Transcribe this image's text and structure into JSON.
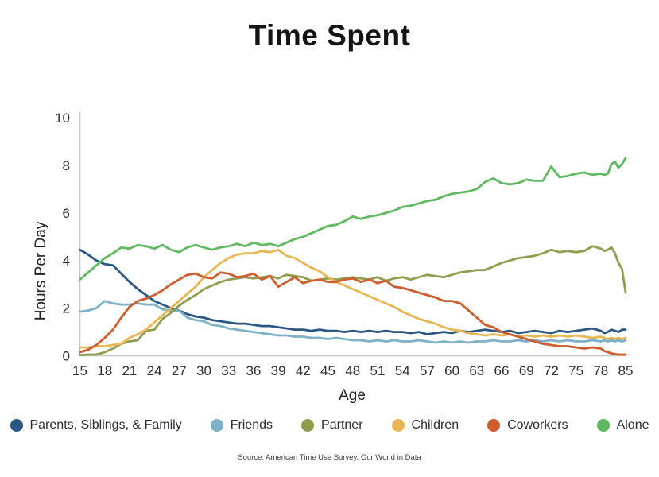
{
  "title": "Time Spent",
  "source": "Source: American Time Use Survey, Our World in Data",
  "chart_data": {
    "type": "line",
    "title": "Time Spent",
    "xlabel": "Age",
    "ylabel": "Hours Per Day",
    "x_range": [
      15,
      85
    ],
    "ylim": [
      0,
      10
    ],
    "grid": false,
    "legend_position": "bottom",
    "x_tick_labels": [
      "15",
      "18",
      "21",
      "24",
      "27",
      "30",
      "33",
      "36",
      "39",
      "42",
      "45",
      "48",
      "51",
      "54",
      "57",
      "60",
      "63",
      "66",
      "69",
      "72",
      "75",
      "78",
      "85"
    ],
    "y_ticks": [
      "0",
      "2",
      "4",
      "6",
      "8",
      "10"
    ],
    "ages": [
      15,
      16,
      17,
      18,
      19,
      20,
      21,
      22,
      23,
      24,
      25,
      26,
      27,
      28,
      29,
      30,
      31,
      32,
      33,
      34,
      35,
      36,
      37,
      38,
      39,
      40,
      41,
      42,
      43,
      44,
      45,
      46,
      47,
      48,
      49,
      50,
      51,
      52,
      53,
      54,
      55,
      56,
      57,
      58,
      59,
      60,
      61,
      62,
      63,
      64,
      65,
      66,
      67,
      68,
      69,
      70,
      71,
      72,
      73,
      74,
      75,
      76,
      77,
      78,
      79,
      80,
      81,
      82,
      83,
      84,
      85
    ],
    "series": [
      {
        "name": "Parents, Siblings, & Family",
        "color": "#2a5784",
        "values": [
          4.45,
          4.25,
          4.0,
          3.85,
          3.8,
          3.45,
          3.1,
          2.8,
          2.55,
          2.3,
          2.15,
          2.0,
          1.9,
          1.75,
          1.65,
          1.6,
          1.5,
          1.45,
          1.4,
          1.35,
          1.35,
          1.3,
          1.25,
          1.25,
          1.2,
          1.15,
          1.1,
          1.1,
          1.05,
          1.1,
          1.05,
          1.05,
          1.0,
          1.05,
          1.0,
          1.05,
          1.0,
          1.05,
          1.0,
          1.0,
          0.95,
          1.0,
          0.9,
          0.95,
          1.0,
          0.95,
          1.05,
          1.0,
          1.05,
          1.1,
          1.05,
          1.0,
          1.05,
          0.95,
          1.0,
          1.05,
          1.0,
          0.95,
          1.05,
          1.0,
          1.05,
          1.1,
          1.15,
          1.05,
          0.95,
          1.0,
          1.1,
          1.05,
          1.0,
          1.1,
          1.1
        ]
      },
      {
        "name": "Friends",
        "color": "#7cb1c7",
        "values": [
          1.85,
          1.9,
          2.0,
          2.3,
          2.2,
          2.15,
          2.15,
          2.2,
          2.15,
          2.15,
          1.95,
          1.9,
          1.9,
          1.6,
          1.5,
          1.45,
          1.3,
          1.25,
          1.15,
          1.1,
          1.05,
          1.0,
          0.95,
          0.9,
          0.85,
          0.85,
          0.8,
          0.8,
          0.75,
          0.75,
          0.7,
          0.75,
          0.7,
          0.65,
          0.65,
          0.6,
          0.65,
          0.6,
          0.65,
          0.6,
          0.6,
          0.65,
          0.6,
          0.55,
          0.6,
          0.55,
          0.6,
          0.55,
          0.6,
          0.6,
          0.65,
          0.6,
          0.6,
          0.65,
          0.6,
          0.65,
          0.6,
          0.65,
          0.6,
          0.65,
          0.6,
          0.6,
          0.65,
          0.6,
          0.65,
          0.6,
          0.65,
          0.6,
          0.65,
          0.6,
          0.65
        ]
      },
      {
        "name": "Partner",
        "color": "#8f9e4e",
        "values": [
          0.03,
          0.05,
          0.05,
          0.15,
          0.3,
          0.5,
          0.6,
          0.65,
          1.05,
          1.1,
          1.55,
          1.8,
          2.1,
          2.35,
          2.55,
          2.8,
          2.95,
          3.1,
          3.2,
          3.25,
          3.3,
          3.25,
          3.3,
          3.35,
          3.25,
          3.4,
          3.35,
          3.3,
          3.15,
          3.2,
          3.25,
          3.2,
          3.25,
          3.3,
          3.25,
          3.2,
          3.3,
          3.15,
          3.25,
          3.3,
          3.2,
          3.3,
          3.4,
          3.35,
          3.3,
          3.4,
          3.5,
          3.55,
          3.6,
          3.6,
          3.75,
          3.9,
          4.0,
          4.1,
          4.15,
          4.2,
          4.3,
          4.45,
          4.35,
          4.4,
          4.35,
          4.4,
          4.6,
          4.5,
          4.4,
          4.45,
          4.55,
          4.3,
          3.9,
          3.65,
          2.65
        ]
      },
      {
        "name": "Children",
        "color": "#e8b654",
        "values": [
          0.35,
          0.35,
          0.4,
          0.4,
          0.45,
          0.5,
          0.75,
          0.9,
          1.1,
          1.4,
          1.7,
          2.0,
          2.3,
          2.6,
          2.9,
          3.3,
          3.6,
          3.9,
          4.1,
          4.25,
          4.3,
          4.3,
          4.4,
          4.35,
          4.45,
          4.2,
          4.1,
          3.9,
          3.7,
          3.55,
          3.3,
          3.1,
          2.95,
          2.8,
          2.65,
          2.5,
          2.35,
          2.2,
          2.05,
          1.85,
          1.7,
          1.55,
          1.45,
          1.35,
          1.2,
          1.1,
          1.05,
          0.95,
          0.9,
          0.85,
          0.9,
          0.85,
          0.9,
          0.8,
          0.85,
          0.8,
          0.85,
          0.8,
          0.85,
          0.8,
          0.85,
          0.8,
          0.75,
          0.8,
          0.75,
          0.7,
          0.75,
          0.7,
          0.75,
          0.7,
          0.75
        ]
      },
      {
        "name": "Coworkers",
        "color": "#cf5e2e",
        "values": [
          0.15,
          0.25,
          0.45,
          0.75,
          1.1,
          1.6,
          2.05,
          2.3,
          2.4,
          2.55,
          2.75,
          3.0,
          3.2,
          3.4,
          3.45,
          3.3,
          3.25,
          3.5,
          3.45,
          3.3,
          3.35,
          3.45,
          3.2,
          3.35,
          2.9,
          3.1,
          3.3,
          3.05,
          3.15,
          3.2,
          3.1,
          3.1,
          3.2,
          3.25,
          3.1,
          3.2,
          3.05,
          3.15,
          2.9,
          2.85,
          2.75,
          2.65,
          2.55,
          2.45,
          2.3,
          2.3,
          2.2,
          1.9,
          1.6,
          1.3,
          1.2,
          1.0,
          0.9,
          0.8,
          0.7,
          0.6,
          0.5,
          0.45,
          0.4,
          0.4,
          0.35,
          0.3,
          0.35,
          0.3,
          0.2,
          0.15,
          0.1,
          0.07,
          0.05,
          0.05,
          0.05
        ]
      },
      {
        "name": "Alone",
        "color": "#5fba5f",
        "values": [
          3.2,
          3.5,
          3.8,
          4.1,
          4.3,
          4.55,
          4.5,
          4.65,
          4.6,
          4.5,
          4.65,
          4.45,
          4.35,
          4.55,
          4.65,
          4.55,
          4.45,
          4.55,
          4.6,
          4.7,
          4.6,
          4.75,
          4.65,
          4.7,
          4.6,
          4.75,
          4.9,
          5.0,
          5.15,
          5.3,
          5.45,
          5.5,
          5.65,
          5.85,
          5.75,
          5.85,
          5.9,
          6.0,
          6.1,
          6.25,
          6.3,
          6.4,
          6.5,
          6.55,
          6.7,
          6.8,
          6.85,
          6.9,
          7.0,
          7.3,
          7.45,
          7.25,
          7.2,
          7.25,
          7.4,
          7.35,
          7.35,
          7.95,
          7.5,
          7.55,
          7.65,
          7.7,
          7.6,
          7.65,
          7.6,
          7.65,
          8.05,
          8.15,
          7.9,
          8.05,
          8.3
        ]
      }
    ]
  }
}
